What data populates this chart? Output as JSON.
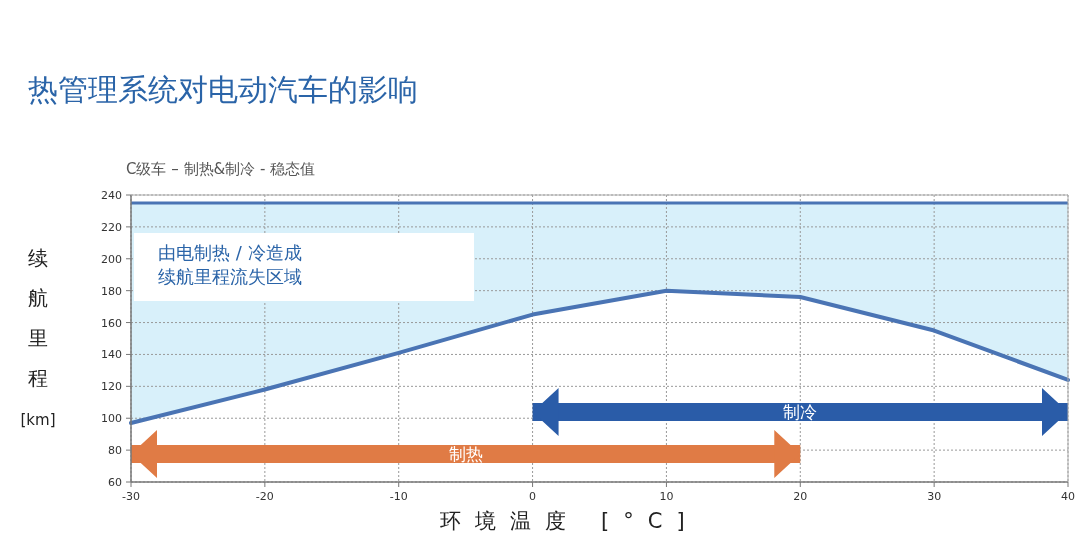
{
  "chart_data": {
    "type": "line",
    "title": "热管理系统对电动汽车的影响",
    "subtitle": "C级车 – 制热&制冷 - 稳态值",
    "xlabel": "环境温度 [°C]",
    "ylabel": "续航里程 [km]",
    "x": [
      -30,
      -20,
      -10,
      0,
      10,
      20,
      30,
      40
    ],
    "series": [
      {
        "color": "#4a74b4",
        "values": [
          97,
          118,
          141,
          165,
          180,
          176,
          155,
          124
        ],
        "lower": [
          97,
          118,
          141,
          165,
          180,
          176,
          155,
          124
        ],
        "upper": [
          235,
          235,
          235,
          235,
          235,
          235,
          235,
          235
        ]
      }
    ],
    "ref_lines": [
      {
        "axis": "y",
        "value": 235,
        "color": "#4a74b4"
      }
    ],
    "bands": [
      {
        "axis": "x",
        "from": 0,
        "to": 40,
        "label": "制冷",
        "color": "#2a5ca8"
      },
      {
        "axis": "x",
        "from": -30,
        "to": 20,
        "label": "制热",
        "color": "#e07b45"
      }
    ],
    "annotations": [
      "由电制热 / 冷造成",
      "续航里程流失区域"
    ],
    "xlim": [
      -30,
      40
    ],
    "xticks": [
      -30,
      -20,
      -10,
      0,
      10,
      20,
      30,
      40
    ],
    "ylim": [
      60,
      240
    ],
    "yticks": [
      60,
      80,
      100,
      120,
      140,
      160,
      180,
      200,
      220,
      240
    ],
    "grid": true
  }
}
